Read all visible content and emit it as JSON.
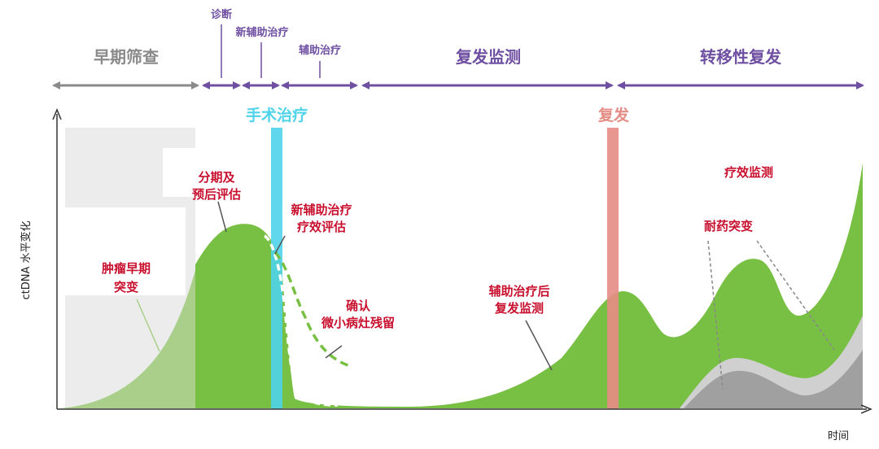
{
  "phases": {
    "early_screening": "早期筛查",
    "diagnosis": "诊断",
    "neoadjuvant": "新辅助治疗",
    "adjuvant": "辅助治疗",
    "recurrence_monitoring": "复发监测",
    "metastatic_recurrence": "转移性复发"
  },
  "events": {
    "surgery": "手术治疗",
    "recurrence": "复发"
  },
  "annotations": {
    "staging_line1": "分期及",
    "staging_line2": "预后评估",
    "neoadj_eval_line1": "新辅助治疗",
    "neoadj_eval_line2": "疗效评估",
    "early_mutation_line1": "肿瘤早期",
    "early_mutation_line2": "突变",
    "mrd_line1": "确认",
    "mrd_line2": "微小病灶残留",
    "post_adjuvant_line1": "辅助治疗后",
    "post_adjuvant_line2": "复发监测",
    "efficacy_monitoring": "疗效监测",
    "resistance_mutation": "耐药突变"
  },
  "axes": {
    "y_label": "ctDNA 水平变化",
    "x_label": "时间"
  },
  "colors": {
    "phase_gray": "#8a8a8a",
    "phase_purple": "#6f4fa1",
    "surgery_cyan": "#4fd3ea",
    "recurrence_salmon": "#e58c84",
    "curve_green": "#78c043",
    "curve_light_green": "#a9cf8a",
    "annotation_red": "#c8102e",
    "gray_block": "#ececec",
    "resistance_gray": "#a0a0a0",
    "resistance_light": "#d0d0d0"
  }
}
